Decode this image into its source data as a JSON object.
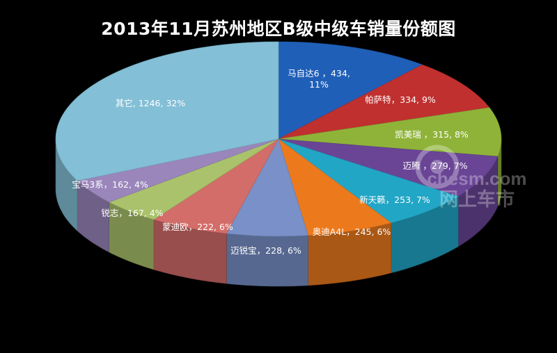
{
  "chart_data": {
    "type": "pie",
    "title": "2013年11月苏州地区B级中级车销量份额图",
    "slices": [
      {
        "name": "马自达6",
        "value": 434,
        "percent": "11%",
        "label_lines": [
          "马自达6 ，434,",
          "11%"
        ],
        "color": "#1f5fb8"
      },
      {
        "name": "帕萨特",
        "value": 334,
        "percent": "9%",
        "label_lines": [
          "帕萨特，334, 9%"
        ],
        "color": "#c0302f"
      },
      {
        "name": "凯美瑞",
        "value": 315,
        "percent": "8%",
        "label_lines": [
          "凯美瑞 ，315, 8%"
        ],
        "color": "#8fb339"
      },
      {
        "name": "迈腾",
        "value": 279,
        "percent": "7%",
        "label_lines": [
          "迈腾 ，279, 7%"
        ],
        "color": "#6a4596"
      },
      {
        "name": "新天籁",
        "value": 253,
        "percent": "7%",
        "label_lines": [
          "新天籁，253, 7%"
        ],
        "color": "#22a6c6"
      },
      {
        "name": "奥迪A4L",
        "value": 245,
        "percent": "6%",
        "label_lines": [
          "奥迪A4L，245, 6%"
        ],
        "color": "#ec7a1d"
      },
      {
        "name": "迈锐宝",
        "value": 228,
        "percent": "6%",
        "label_lines": [
          "迈锐宝，228, 6%"
        ],
        "color": "#7990c8"
      },
      {
        "name": "蒙迪欧",
        "value": 222,
        "percent": "6%",
        "label_lines": [
          "蒙迪欧，222, 6%"
        ],
        "color": "#d26d69"
      },
      {
        "name": "锐志",
        "value": 167,
        "percent": "4%",
        "label_lines": [
          "锐志，167, 4%"
        ],
        "color": "#a9c26b"
      },
      {
        "name": "宝马3系",
        "value": 162,
        "percent": "4%",
        "label_lines": [
          "宝马3系，162, 4%"
        ],
        "color": "#9a86bb"
      },
      {
        "name": "其它",
        "value": 1246,
        "percent": "32%",
        "label_lines": [
          "其它, 1246, 32%"
        ],
        "color": "#83bfd6"
      }
    ]
  },
  "watermark": {
    "site": "chesm.com",
    "name": "网上车市"
  }
}
